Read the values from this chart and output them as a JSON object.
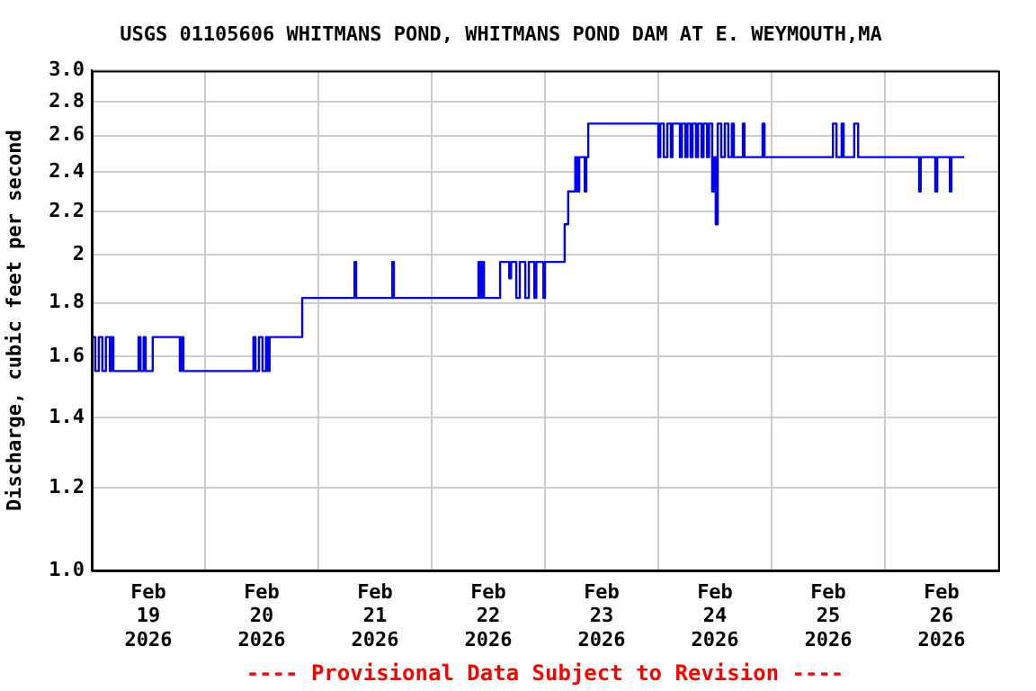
{
  "chart_data": {
    "type": "step",
    "title": "USGS 01105606 WHITMANS POND, WHITMANS POND DAM AT E. WEYMOUTH,MA",
    "ylabel": "Discharge, cubic feet per second",
    "annotations": [
      "---- Provisional Data Subject to Revision ----"
    ],
    "log": "y",
    "grid": true,
    "legend": false,
    "marker": "none",
    "line_style": "solid",
    "xlim": [
      "2026-02-19T00:00",
      "2026-02-27T00:00"
    ],
    "xticks": [
      {
        "value": "2026-02-19T00:00",
        "label": null
      },
      {
        "value": "2026-02-19T12:00",
        "label": "Feb\n19\n2026"
      },
      {
        "value": "2026-02-20T00:00",
        "label": null
      },
      {
        "value": "2026-02-20T12:00",
        "label": "Feb\n20\n2026"
      },
      {
        "value": "2026-02-21T00:00",
        "label": null
      },
      {
        "value": "2026-02-21T12:00",
        "label": "Feb\n21\n2026"
      },
      {
        "value": "2026-02-22T00:00",
        "label": null
      },
      {
        "value": "2026-02-22T12:00",
        "label": "Feb\n22\n2026"
      },
      {
        "value": "2026-02-23T00:00",
        "label": null
      },
      {
        "value": "2026-02-23T12:00",
        "label": "Feb\n23\n2026"
      },
      {
        "value": "2026-02-24T00:00",
        "label": null
      },
      {
        "value": "2026-02-24T12:00",
        "label": "Feb\n24\n2026"
      },
      {
        "value": "2026-02-25T00:00",
        "label": null
      },
      {
        "value": "2026-02-25T12:00",
        "label": "Feb\n25\n2026"
      },
      {
        "value": "2026-02-26T00:00",
        "label": null
      },
      {
        "value": "2026-02-26T12:00",
        "label": "Feb\n26\n2026"
      },
      {
        "value": "2026-02-27T00:00",
        "label": null
      }
    ],
    "ylim": [
      1.0,
      3.0
    ],
    "yticks": [
      {
        "value": 1.0,
        "label": "1.0"
      },
      1.2,
      1.4,
      1.6,
      1.8,
      2,
      2.2,
      2.4,
      2.6,
      2.8,
      {
        "value": 3.0,
        "label": "3.0"
      }
    ],
    "x": [
      "2026-02-19T00:00",
      "2026-02-19T00:45",
      "2026-02-19T01:30",
      "2026-02-19T02:15",
      "2026-02-19T03:00",
      "2026-02-19T03:50",
      "2026-02-19T04:10",
      "2026-02-19T04:35",
      "2026-02-19T09:55",
      "2026-02-19T10:20",
      "2026-02-19T11:00",
      "2026-02-19T11:25",
      "2026-02-19T12:55",
      "2026-02-19T18:40",
      "2026-02-19T19:00",
      "2026-02-19T19:25",
      "2026-02-20T10:15",
      "2026-02-20T10:40",
      "2026-02-20T11:25",
      "2026-02-20T12:10",
      "2026-02-20T12:55",
      "2026-02-20T13:20",
      "2026-02-20T13:40",
      "2026-02-20T20:35",
      "2026-02-21T07:40",
      "2026-02-21T08:00",
      "2026-02-21T15:40",
      "2026-02-21T16:00",
      "2026-02-22T09:55",
      "2026-02-22T10:20",
      "2026-02-22T10:40",
      "2026-02-22T11:05",
      "2026-02-22T14:30",
      "2026-02-22T16:25",
      "2026-02-22T16:50",
      "2026-02-22T17:55",
      "2026-02-22T18:40",
      "2026-02-22T19:50",
      "2026-02-22T20:35",
      "2026-02-22T21:45",
      "2026-02-22T22:10",
      "2026-02-22T23:40",
      "2026-02-23T00:00",
      "2026-02-23T04:10",
      "2026-02-23T04:55",
      "2026-02-23T06:25",
      "2026-02-23T06:50",
      "2026-02-23T07:15",
      "2026-02-23T08:25",
      "2026-02-23T08:45",
      "2026-02-23T09:10",
      "2026-02-24T00:00",
      "2026-02-24T00:25",
      "2026-02-24T01:10",
      "2026-02-24T01:55",
      "2026-02-24T02:40",
      "2026-02-24T03:00",
      "2026-02-24T04:35",
      "2026-02-24T05:00",
      "2026-02-24T05:45",
      "2026-02-24T06:10",
      "2026-02-24T06:50",
      "2026-02-24T07:15",
      "2026-02-24T08:00",
      "2026-02-24T08:25",
      "2026-02-24T09:10",
      "2026-02-24T09:35",
      "2026-02-24T10:20",
      "2026-02-24T10:45",
      "2026-02-24T11:25",
      "2026-02-24T11:50",
      "2026-02-24T12:10",
      "2026-02-24T12:35",
      "2026-02-24T13:20",
      "2026-02-24T14:05",
      "2026-02-24T14:50",
      "2026-02-24T15:35",
      "2026-02-24T16:00",
      "2026-02-24T17:55",
      "2026-02-24T18:15",
      "2026-02-24T22:05",
      "2026-02-24T22:30",
      "2026-02-25T13:00",
      "2026-02-25T13:45",
      "2026-02-25T14:50",
      "2026-02-25T15:15",
      "2026-02-25T17:30",
      "2026-02-25T18:20",
      "2026-02-26T07:15",
      "2026-02-26T07:35",
      "2026-02-26T10:40",
      "2026-02-26T11:05",
      "2026-02-26T13:45",
      "2026-02-26T14:05",
      "2026-02-26T16:50"
    ],
    "series": [
      {
        "color": "#0000ff",
        "values": [
          1.67,
          1.55,
          1.67,
          1.55,
          1.67,
          1.55,
          1.67,
          1.55,
          1.67,
          1.55,
          1.67,
          1.55,
          1.67,
          1.55,
          1.67,
          1.55,
          1.67,
          1.55,
          1.67,
          1.55,
          1.67,
          1.55,
          1.67,
          1.82,
          1.97,
          1.82,
          1.97,
          1.82,
          1.97,
          1.82,
          1.97,
          1.82,
          1.97,
          1.9,
          1.97,
          1.82,
          1.97,
          1.82,
          1.97,
          1.82,
          1.97,
          1.82,
          1.97,
          2.14,
          2.3,
          2.48,
          2.3,
          2.48,
          2.3,
          2.48,
          2.67,
          2.48,
          2.67,
          2.48,
          2.67,
          2.48,
          2.67,
          2.48,
          2.67,
          2.48,
          2.67,
          2.48,
          2.67,
          2.48,
          2.67,
          2.48,
          2.67,
          2.48,
          2.67,
          2.3,
          2.48,
          2.14,
          2.67,
          2.48,
          2.67,
          2.48,
          2.67,
          2.48,
          2.67,
          2.48,
          2.67,
          2.48,
          2.67,
          2.48,
          2.67,
          2.48,
          2.67,
          2.48,
          2.3,
          2.48,
          2.3,
          2.48,
          2.3,
          2.48,
          2.48
        ]
      }
    ]
  }
}
